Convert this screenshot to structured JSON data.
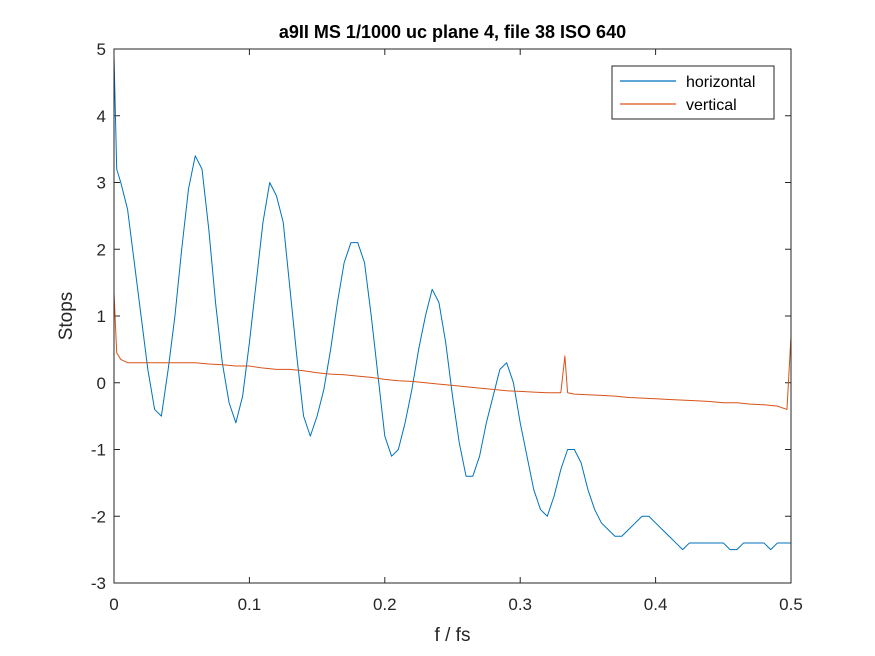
{
  "chart_data": {
    "type": "line",
    "title": "a9II MS 1/1000 uc plane 4, file 38 ISO 640",
    "xlabel": "f / fs",
    "ylabel": "Stops",
    "xlim": [
      0,
      0.5
    ],
    "ylim": [
      -3,
      5
    ],
    "xticks": [
      0,
      0.1,
      0.2,
      0.3,
      0.4,
      0.5
    ],
    "xtick_labels": [
      "0",
      "0.1",
      "0.2",
      "0.3",
      "0.4",
      "0.5"
    ],
    "yticks": [
      -3,
      -2,
      -1,
      0,
      1,
      2,
      3,
      4,
      5
    ],
    "ytick_labels": [
      "-3",
      "-2",
      "-1",
      "0",
      "1",
      "2",
      "3",
      "4",
      "5"
    ],
    "grid": false,
    "legend_position": "top-right",
    "series": [
      {
        "name": "horizontal",
        "color": "#0072BD",
        "x": [
          0,
          0.002,
          0.005,
          0.01,
          0.015,
          0.02,
          0.025,
          0.03,
          0.035,
          0.04,
          0.045,
          0.05,
          0.055,
          0.06,
          0.065,
          0.07,
          0.075,
          0.08,
          0.085,
          0.09,
          0.095,
          0.1,
          0.105,
          0.11,
          0.115,
          0.12,
          0.125,
          0.13,
          0.135,
          0.14,
          0.145,
          0.15,
          0.155,
          0.16,
          0.165,
          0.17,
          0.175,
          0.18,
          0.185,
          0.19,
          0.195,
          0.2,
          0.205,
          0.21,
          0.215,
          0.22,
          0.225,
          0.23,
          0.235,
          0.24,
          0.245,
          0.25,
          0.255,
          0.26,
          0.265,
          0.27,
          0.275,
          0.28,
          0.285,
          0.29,
          0.295,
          0.3,
          0.305,
          0.31,
          0.315,
          0.32,
          0.325,
          0.33,
          0.335,
          0.34,
          0.345,
          0.35,
          0.355,
          0.36,
          0.365,
          0.37,
          0.375,
          0.38,
          0.385,
          0.39,
          0.395,
          0.4,
          0.405,
          0.41,
          0.415,
          0.42,
          0.425,
          0.43,
          0.435,
          0.44,
          0.445,
          0.45,
          0.455,
          0.46,
          0.465,
          0.47,
          0.475,
          0.48,
          0.485,
          0.49,
          0.495,
          0.5
        ],
        "y": [
          4.9,
          3.2,
          3.0,
          2.6,
          1.8,
          1.0,
          0.2,
          -0.4,
          -0.5,
          0.2,
          1.0,
          2.0,
          2.9,
          3.4,
          3.2,
          2.3,
          1.2,
          0.3,
          -0.3,
          -0.6,
          -0.2,
          0.6,
          1.5,
          2.4,
          3.0,
          2.8,
          2.4,
          1.4,
          0.4,
          -0.5,
          -0.8,
          -0.5,
          -0.1,
          0.5,
          1.2,
          1.8,
          2.1,
          2.1,
          1.8,
          1.0,
          0.1,
          -0.8,
          -1.1,
          -1.0,
          -0.6,
          -0.1,
          0.5,
          1.0,
          1.4,
          1.2,
          0.6,
          -0.2,
          -0.9,
          -1.4,
          -1.4,
          -1.1,
          -0.6,
          -0.2,
          0.2,
          0.3,
          0.0,
          -0.6,
          -1.1,
          -1.6,
          -1.9,
          -2.0,
          -1.7,
          -1.3,
          -1.0,
          -1.0,
          -1.2,
          -1.6,
          -1.9,
          -2.1,
          -2.2,
          -2.3,
          -2.3,
          -2.2,
          -2.1,
          -2.0,
          -2.0,
          -2.1,
          -2.2,
          -2.3,
          -2.4,
          -2.5,
          -2.4,
          -2.4,
          -2.4,
          -2.4,
          -2.4,
          -2.4,
          -2.5,
          -2.5,
          -2.4,
          -2.4,
          -2.4,
          -2.4,
          -2.5,
          -2.4,
          -2.4,
          -2.4
        ]
      },
      {
        "name": "vertical",
        "color": "#D95319",
        "x": [
          0,
          0.002,
          0.005,
          0.01,
          0.02,
          0.03,
          0.04,
          0.05,
          0.06,
          0.07,
          0.08,
          0.09,
          0.1,
          0.11,
          0.12,
          0.13,
          0.14,
          0.15,
          0.16,
          0.17,
          0.18,
          0.19,
          0.2,
          0.21,
          0.22,
          0.23,
          0.24,
          0.25,
          0.26,
          0.27,
          0.28,
          0.29,
          0.3,
          0.31,
          0.32,
          0.33,
          0.333,
          0.335,
          0.34,
          0.35,
          0.36,
          0.37,
          0.38,
          0.39,
          0.4,
          0.41,
          0.42,
          0.43,
          0.44,
          0.45,
          0.46,
          0.47,
          0.48,
          0.49,
          0.497,
          0.5
        ],
        "y": [
          1.35,
          0.45,
          0.35,
          0.3,
          0.3,
          0.3,
          0.3,
          0.3,
          0.3,
          0.28,
          0.27,
          0.25,
          0.25,
          0.22,
          0.2,
          0.2,
          0.18,
          0.15,
          0.13,
          0.12,
          0.1,
          0.08,
          0.05,
          0.03,
          0.02,
          0.0,
          -0.02,
          -0.04,
          -0.06,
          -0.08,
          -0.1,
          -0.12,
          -0.13,
          -0.14,
          -0.15,
          -0.15,
          0.4,
          -0.15,
          -0.17,
          -0.18,
          -0.19,
          -0.2,
          -0.22,
          -0.23,
          -0.24,
          -0.25,
          -0.26,
          -0.27,
          -0.28,
          -0.3,
          -0.3,
          -0.32,
          -0.33,
          -0.35,
          -0.4,
          0.7
        ]
      }
    ]
  }
}
